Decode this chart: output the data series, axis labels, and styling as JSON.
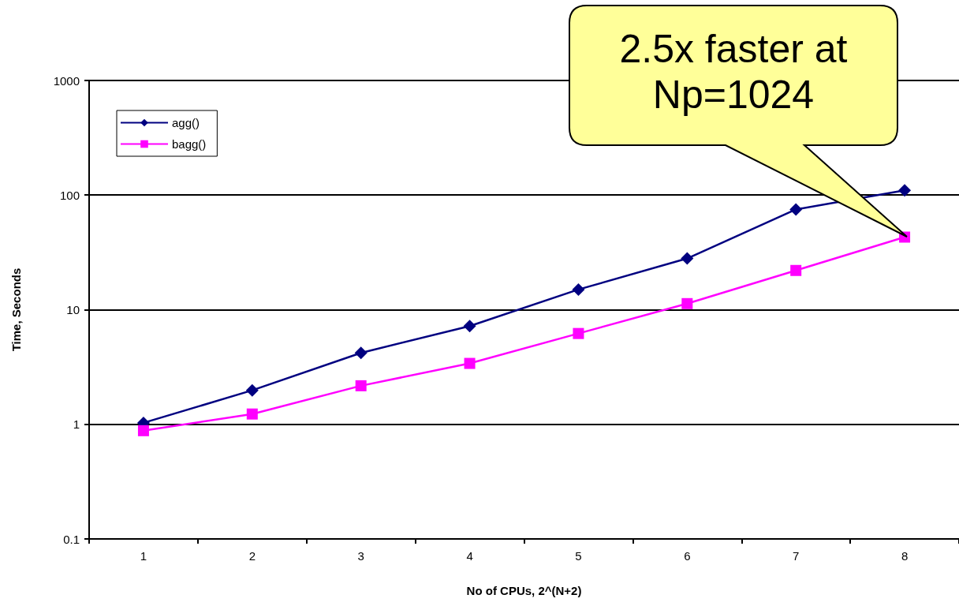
{
  "chart_data": {
    "type": "line",
    "xlabel": "No of CPUs, 2^(N+2)",
    "ylabel": "Time, Seconds",
    "categories": [
      "1",
      "2",
      "3",
      "4",
      "5",
      "6",
      "7",
      "8"
    ],
    "series": [
      {
        "name": "agg()",
        "color": "#000080",
        "marker": "diamond",
        "values": [
          1.03,
          1.98,
          4.2,
          7.2,
          15,
          28,
          75,
          110
        ]
      },
      {
        "name": "bagg()",
        "color": "#ff00ff",
        "marker": "square",
        "values": [
          0.88,
          1.23,
          2.17,
          3.4,
          6.2,
          11.3,
          22,
          43
        ]
      }
    ],
    "log": "y",
    "ylim": [
      0.1,
      1000
    ],
    "yticks": [
      0.1,
      1,
      10,
      100,
      1000
    ],
    "grid": "y",
    "legend": "top left",
    "annotations": [
      "2.5x faster at Np=1024"
    ]
  }
}
